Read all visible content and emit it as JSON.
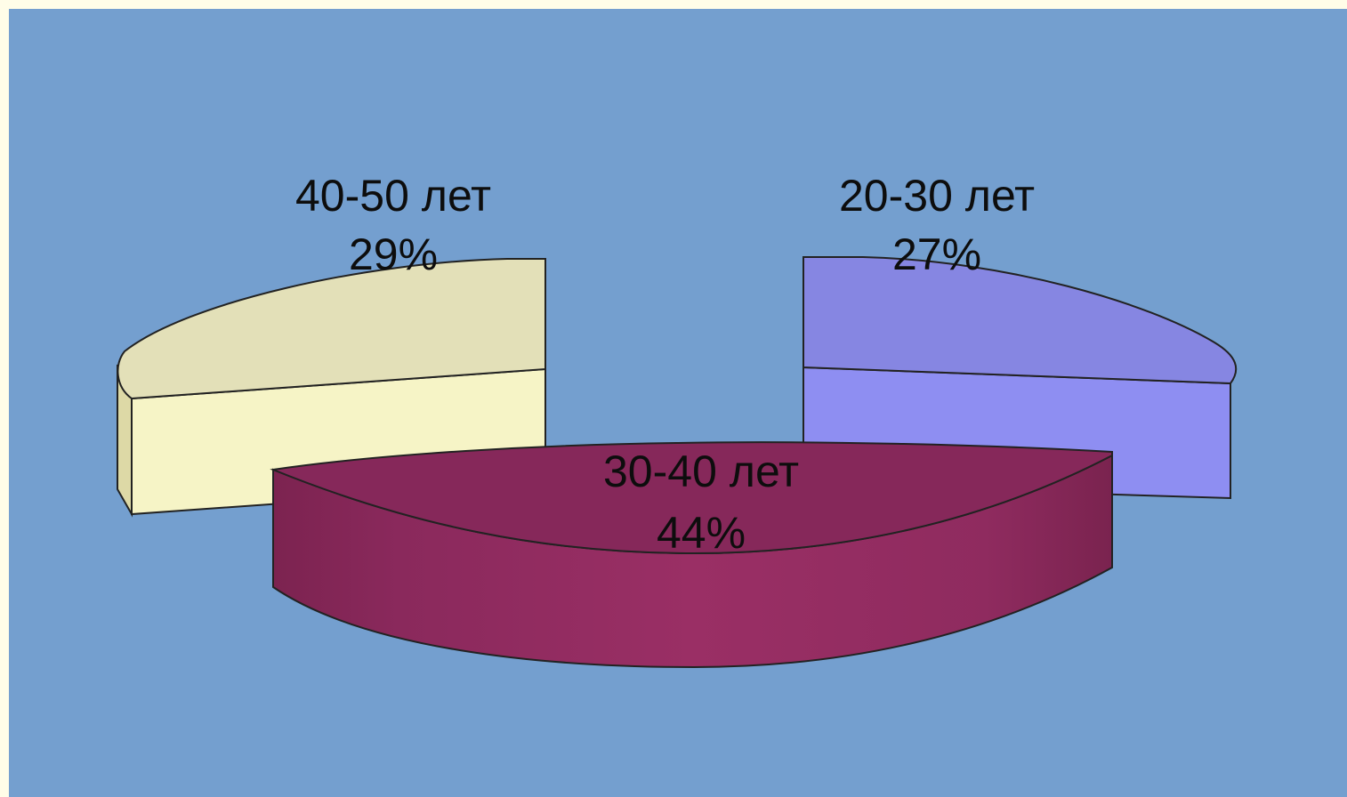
{
  "chart_data": {
    "type": "pie",
    "style": "3d-exploded",
    "background": "#749fcf",
    "page_background": "#fffde8",
    "slices": [
      {
        "label": "40-50 лет",
        "percent_text": "29%",
        "value": 29,
        "color_top": "#e3e0b8",
        "color_side": "#f6f4c6"
      },
      {
        "label": "20-30 лет",
        "percent_text": "27%",
        "value": 27,
        "color_top": "#8686e2",
        "color_side": "#8e8ef2"
      },
      {
        "label": "30-40 лет",
        "percent_text": "44%",
        "value": 44,
        "color_top": "#86285a",
        "color_side": "#972e63"
      }
    ]
  }
}
